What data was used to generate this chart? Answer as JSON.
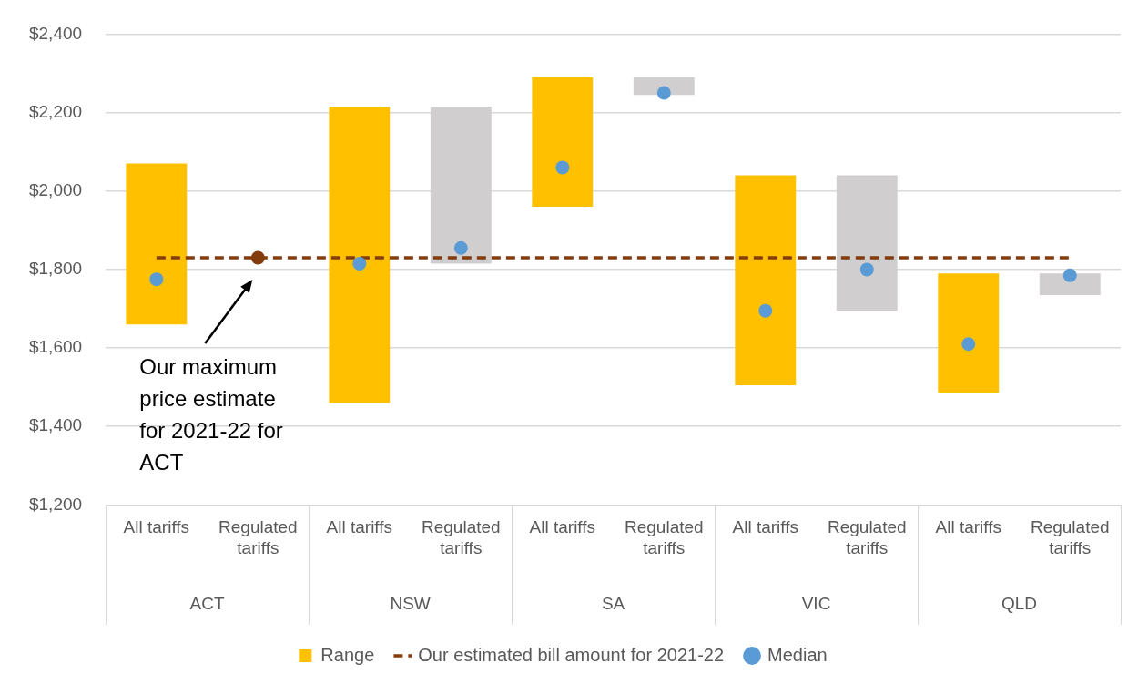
{
  "chart_data": {
    "type": "bar",
    "categories": [
      "All tariffs",
      "Regulated tariffs",
      "All tariffs",
      "Regulated tariffs",
      "All tariffs",
      "Regulated tariffs",
      "All tariffs",
      "Regulated tariffs",
      "All tariffs",
      "Regulated tariffs"
    ],
    "series": [
      {
        "name": "Range",
        "colors": [
          "#ffc000",
          "#d0cece",
          "#ffc000",
          "#d0cece",
          "#ffc000",
          "#d0cece",
          "#ffc000",
          "#d0cece",
          "#ffc000",
          "#d0cece"
        ],
        "values": [
          410,
          null,
          755,
          400,
          330,
          45,
          535,
          345,
          305,
          55
        ],
        "base": [
          1660,
          null,
          1460,
          1815,
          1960,
          2245,
          1505,
          1695,
          1485,
          1735
        ]
      },
      {
        "type": "line",
        "name": "Our estimated bill amount for 2021-22",
        "color": "#843c0c",
        "line_style": "dashed",
        "marker": "none",
        "values": [
          1830,
          1830,
          1830,
          1830,
          1830,
          1830,
          1830,
          1830,
          1830,
          1830
        ]
      },
      {
        "type": "scatter",
        "name": "Median",
        "color": "#5b9bd5",
        "marker": "circle",
        "values": [
          1775,
          null,
          1815,
          1855,
          2060,
          2250,
          1695,
          1800,
          1610,
          1785
        ]
      },
      {
        "type": "scatter",
        "color": "#843c0c",
        "marker": "circle",
        "values": [
          null,
          1830,
          null,
          null,
          null,
          null,
          null,
          null,
          null,
          null
        ]
      }
    ],
    "ylim": [
      1200,
      2400
    ],
    "yticks": [
      {
        "value": 1200,
        "label": "$1,200"
      },
      {
        "value": 1400,
        "label": "$1,400"
      },
      {
        "value": 1600,
        "label": "$1,600"
      },
      {
        "value": 1800,
        "label": "$1,800"
      },
      {
        "value": 2000,
        "label": "$2,000"
      },
      {
        "value": 2200,
        "label": "$2,200"
      },
      {
        "value": 2400,
        "label": "$2,400"
      }
    ],
    "grid": "y",
    "legend": "bottom",
    "annotations": [
      "Our maximum price estimate for 2021-22 for ACT",
      "ACT",
      "NSW",
      "SA",
      "VIC",
      "QLD"
    ]
  }
}
